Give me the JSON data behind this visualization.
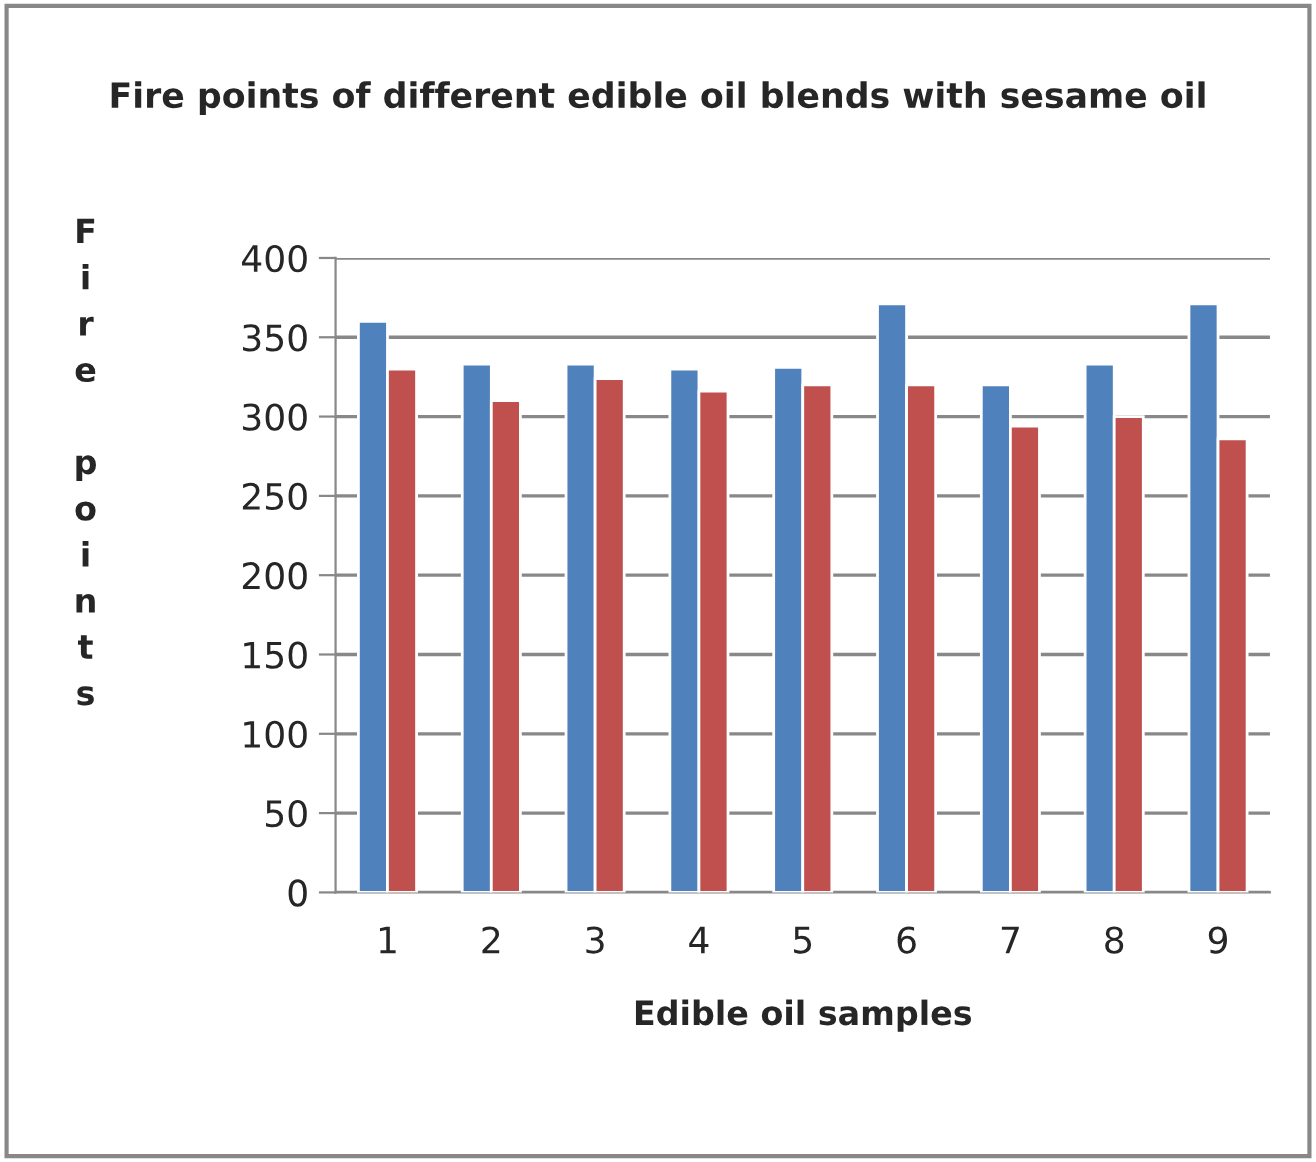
{
  "chart_data": {
    "type": "bar",
    "title": "Fire points of different edible oil blends with sesame oil",
    "xlabel": "Edible oil samples",
    "ylabel": "Fire points",
    "categories": [
      "1",
      "2",
      "3",
      "4",
      "5",
      "6",
      "7",
      "8",
      "9"
    ],
    "series": [
      {
        "color": "#4f81bd",
        "values": [
          360,
          333,
          333,
          330,
          331,
          371,
          320,
          333,
          371
        ]
      },
      {
        "color": "#c0504d",
        "values": [
          330,
          310,
          324,
          316,
          320,
          320,
          294,
          300,
          286
        ]
      }
    ],
    "ylim": [
      0,
      400
    ],
    "yticks": [
      0,
      50,
      100,
      150,
      200,
      250,
      300,
      350,
      400
    ],
    "grid": "y",
    "legend": false
  }
}
